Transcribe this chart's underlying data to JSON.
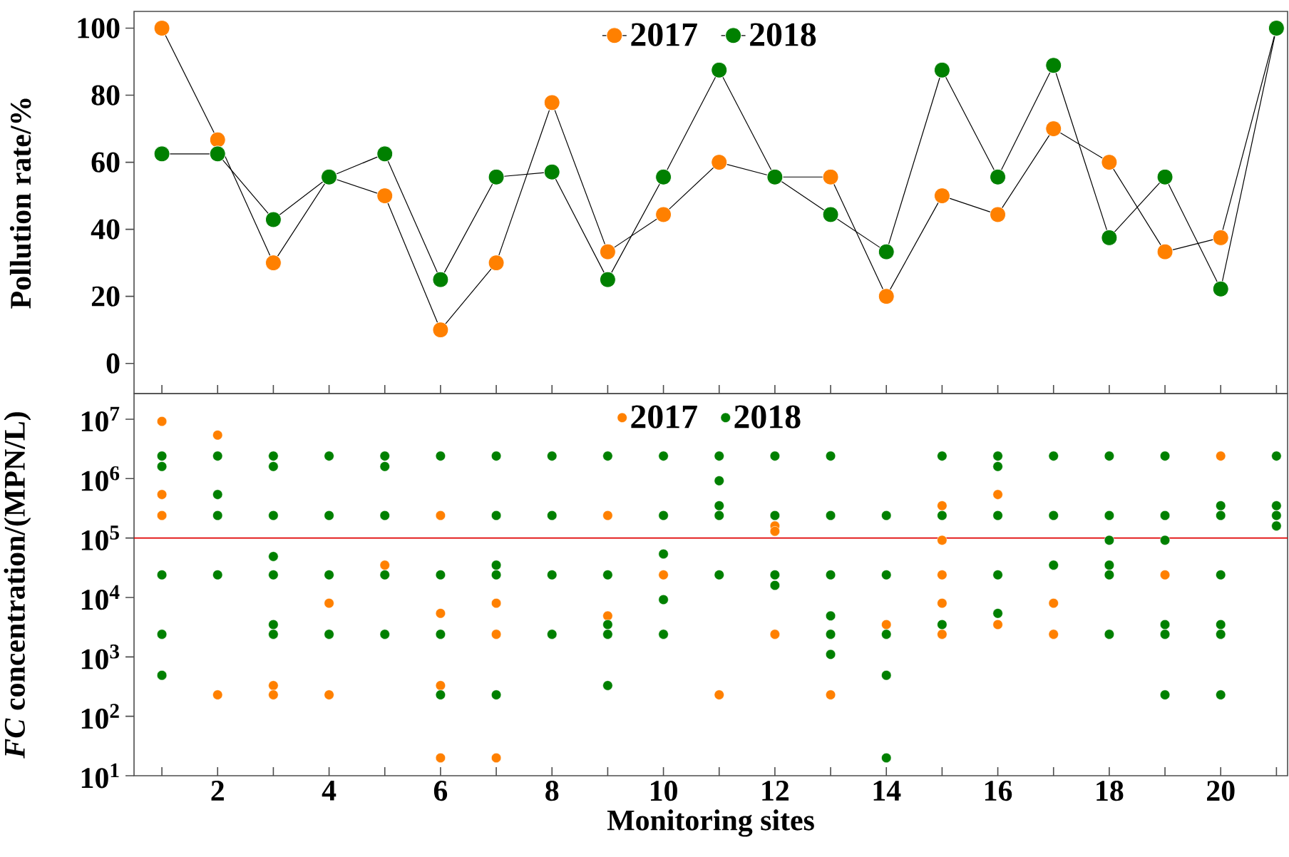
{
  "chart_data": [
    {
      "type": "line",
      "ylabel": "Pollution rate/%",
      "x": [
        1,
        2,
        3,
        4,
        5,
        6,
        7,
        8,
        9,
        10,
        11,
        12,
        13,
        14,
        15,
        16,
        17,
        18,
        19,
        20,
        21
      ],
      "series": [
        {
          "name": "2017",
          "color": "#ff8000",
          "values": [
            100,
            66.7,
            30,
            55.6,
            50,
            10,
            30,
            77.8,
            33.3,
            44.4,
            60,
            55.6,
            55.6,
            20,
            50,
            44.4,
            70,
            60,
            33.3,
            37.5,
            100
          ]
        },
        {
          "name": "2018",
          "color": "#008000",
          "values": [
            62.5,
            62.5,
            42.9,
            55.6,
            62.5,
            25,
            55.6,
            57.1,
            25,
            55.6,
            87.5,
            55.6,
            44.4,
            33.3,
            87.5,
            55.6,
            88.9,
            37.5,
            55.6,
            22.2,
            100
          ]
        }
      ],
      "xlim": [
        0.5,
        21.2
      ],
      "ylim": [
        -9,
        105
      ],
      "yticks": [
        0,
        20,
        40,
        60,
        80,
        100
      ],
      "xticks": [
        {
          "value": 1,
          "label": null
        },
        {
          "value": 2,
          "label": null
        },
        {
          "value": 3,
          "label": null
        },
        {
          "value": 4,
          "label": null
        },
        {
          "value": 5,
          "label": null
        },
        {
          "value": 6,
          "label": null
        },
        {
          "value": 7,
          "label": null
        },
        {
          "value": 8,
          "label": null
        },
        {
          "value": 9,
          "label": null
        },
        {
          "value": 10,
          "label": null
        },
        {
          "value": 11,
          "label": null
        },
        {
          "value": 12,
          "label": null
        },
        {
          "value": 13,
          "label": null
        },
        {
          "value": 14,
          "label": null
        },
        {
          "value": 15,
          "label": null
        },
        {
          "value": 16,
          "label": null
        },
        {
          "value": 17,
          "label": null
        },
        {
          "value": 18,
          "label": null
        },
        {
          "value": 19,
          "label": null
        },
        {
          "value": 20,
          "label": null
        },
        {
          "value": 21,
          "label": null
        }
      ],
      "tick_labels": "y",
      "marker": "circle",
      "legend": "top"
    },
    {
      "type": "scatter",
      "xlabel": "Monitoring sites",
      "ylabel": "*FC* concentration/(MPN/L)",
      "log": "y",
      "marker": "circle",
      "legend": "top",
      "series": [
        {
          "name": "2017",
          "color": "#ff8000",
          "x": [
            1,
            1,
            1,
            2,
            2,
            3,
            3,
            4,
            4,
            5,
            6,
            6,
            6,
            6,
            7,
            7,
            7,
            9,
            9,
            10,
            11,
            12,
            12,
            12,
            13,
            14,
            15,
            15,
            15,
            15,
            15,
            16,
            16,
            17,
            17,
            19,
            20
          ],
          "values": [
            9200000,
            540000,
            240000,
            5400000,
            230,
            330,
            230,
            8000,
            230,
            35000,
            240000,
            5400,
            330,
            20,
            8000,
            2400,
            20,
            240000,
            4900,
            24000,
            230,
            160000,
            130000,
            2400,
            230,
            3500,
            350000,
            92000,
            24000,
            8000,
            2400,
            540000,
            3500,
            8000,
            2400,
            24000,
            2400000
          ]
        },
        {
          "name": "2018",
          "color": "#008000",
          "x": [
            1,
            1,
            1,
            1,
            1,
            2,
            2,
            2,
            2,
            3,
            3,
            3,
            3,
            3,
            3,
            3,
            4,
            4,
            4,
            4,
            5,
            5,
            5,
            5,
            5,
            6,
            6,
            6,
            6,
            7,
            7,
            7,
            7,
            7,
            8,
            8,
            8,
            8,
            9,
            9,
            9,
            9,
            9,
            10,
            10,
            10,
            10,
            10,
            11,
            11,
            11,
            11,
            11,
            12,
            12,
            12,
            12,
            13,
            13,
            13,
            13,
            13,
            13,
            14,
            14,
            14,
            14,
            14,
            15,
            15,
            15,
            16,
            16,
            16,
            16,
            16,
            17,
            17,
            17,
            18,
            18,
            18,
            18,
            18,
            18,
            19,
            19,
            19,
            19,
            19,
            19,
            20,
            20,
            20,
            20,
            20,
            20,
            21,
            21,
            21,
            21
          ],
          "values": [
            2400000,
            1600000,
            24000,
            2400,
            490,
            2400000,
            540000,
            240000,
            24000,
            2400000,
            1600000,
            240000,
            49000,
            24000,
            3500,
            2400,
            2400000,
            240000,
            24000,
            2400,
            2400000,
            1600000,
            240000,
            24000,
            2400,
            2400000,
            24000,
            2400,
            230,
            2400000,
            240000,
            35000,
            24000,
            230,
            2400000,
            240000,
            24000,
            2400,
            2400000,
            24000,
            3500,
            2400,
            330,
            2400000,
            240000,
            54000,
            9200,
            2400,
            2400000,
            920000,
            350000,
            240000,
            24000,
            2400000,
            240000,
            24000,
            16000,
            2400000,
            240000,
            24000,
            4900,
            2400,
            1100,
            240000,
            24000,
            2400,
            490,
            20,
            2400000,
            240000,
            3500,
            2400000,
            1600000,
            240000,
            24000,
            5400,
            2400000,
            240000,
            35000,
            2400000,
            240000,
            92000,
            35000,
            24000,
            2400,
            2400000,
            240000,
            92000,
            3500,
            2400,
            230,
            350000,
            240000,
            24000,
            3500,
            2400,
            230,
            2400000,
            350000,
            240000,
            160000
          ]
        }
      ],
      "xlim": [
        0.5,
        21.2
      ],
      "ylim": [
        10,
        27000000
      ],
      "xticks": [
        {
          "value": 1,
          "label": null
        },
        2,
        {
          "value": 3,
          "label": null
        },
        4,
        {
          "value": 5,
          "label": null
        },
        6,
        {
          "value": 7,
          "label": null
        },
        8,
        {
          "value": 9,
          "label": null
        },
        10,
        {
          "value": 11,
          "label": null
        },
        12,
        {
          "value": 13,
          "label": null
        },
        14,
        {
          "value": 15,
          "label": null
        },
        16,
        {
          "value": 17,
          "label": null
        },
        18,
        {
          "value": 19,
          "label": null
        },
        20,
        {
          "value": 21,
          "label": null
        }
      ],
      "yticks": [
        {
          "value": 10,
          "label": "10$^{1}$"
        },
        {
          "value": 100,
          "label": "10$^{2}$"
        },
        {
          "value": 1000,
          "label": "10$^{3}$"
        },
        {
          "value": 10000,
          "label": "10$^{4}$"
        },
        {
          "value": 100000,
          "label": "10$^{5}$"
        },
        {
          "value": 1000000,
          "label": "10$^{6}$"
        },
        {
          "value": 10000000,
          "label": "10$^{7}$"
        }
      ],
      "ref_lines": [
        {
          "axis": "y",
          "value": 100000,
          "color": "#e00000"
        }
      ]
    }
  ]
}
